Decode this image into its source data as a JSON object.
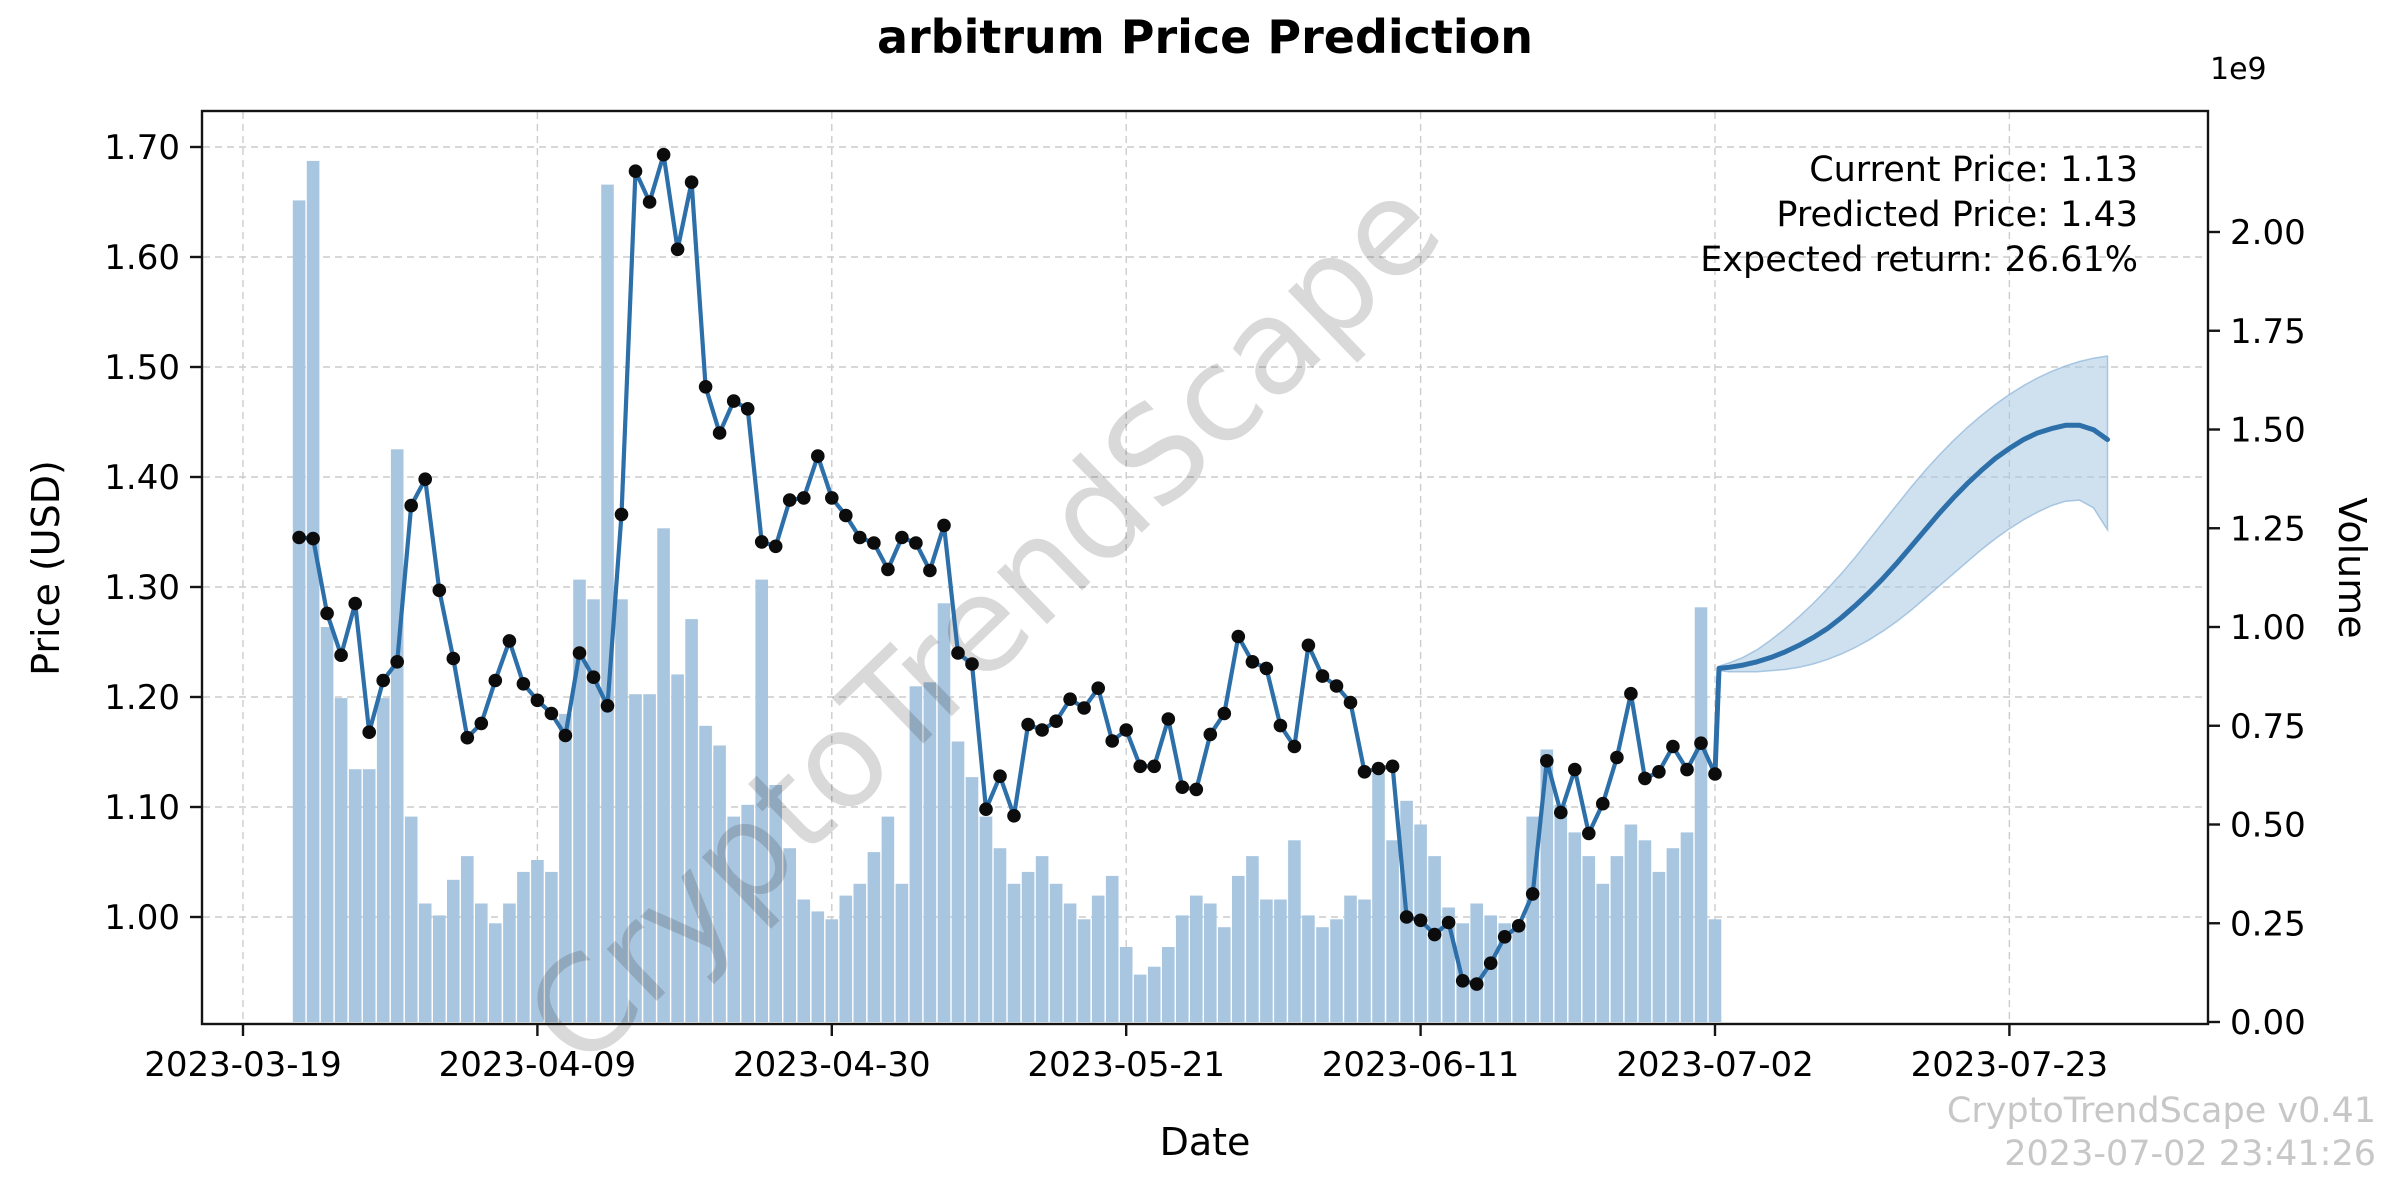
{
  "figure": {
    "title": "arbitrum Price Prediction",
    "xlabel": "Date",
    "ylabel_left": "Price (USD)",
    "ylabel_right": "Volume",
    "right_axis_multiplier": "1e9",
    "watermark": "CryptoTrendScape",
    "footer_line1": "CryptoTrendScape v0.41",
    "footer_line2": "2023-07-02 23:41:26",
    "annotation": {
      "current_price_label": "Current Price: 1.13",
      "predicted_price_label": "Predicted Price: 1.43",
      "expected_return_label": "Expected return: 26.61%"
    },
    "colors": {
      "price_line": "#2d6fa9",
      "prediction_line": "#2d6fa9",
      "marker": "#0c0c0c",
      "volume_bar": "#a9c6e0",
      "band_fill": "#a8c8e2",
      "band_edge": "#8cb4d8",
      "grid": "#cccccc",
      "spine": "#141414",
      "watermark": "rgba(0,0,0,0.15)",
      "footer_text": "#c7c7c7"
    }
  },
  "chart_data": {
    "type": "line",
    "title": "arbitrum Price Prediction",
    "xlabel": "Date",
    "ylabel": "Price (USD)",
    "y2label": "Volume",
    "grid": true,
    "x_tick_labels": [
      "2023-03-19",
      "2023-04-09",
      "2023-04-30",
      "2023-05-21",
      "2023-06-11",
      "2023-07-02",
      "2023-07-23"
    ],
    "price_tick_labels": [
      "1.00",
      "1.10",
      "1.20",
      "1.30",
      "1.40",
      "1.50",
      "1.60",
      "1.70"
    ],
    "volume_tick_labels": [
      "0.00",
      "0.25",
      "0.50",
      "0.75",
      "1.00",
      "1.25",
      "1.50",
      "1.75",
      "2.00"
    ],
    "price_ylim": [
      0.9,
      1.733
    ],
    "volume_ylim_1e9": [
      0,
      2.3
    ],
    "current_price": 1.13,
    "predicted_price": 1.43,
    "expected_return_pct": 26.61,
    "history": {
      "start_date": "2023-03-23",
      "end_date": "2023-07-02",
      "prices": [
        1.345,
        1.344,
        1.276,
        1.238,
        1.285,
        1.168,
        1.215,
        1.232,
        1.374,
        1.398,
        1.297,
        1.235,
        1.163,
        1.176,
        1.215,
        1.251,
        1.212,
        1.197,
        1.185,
        1.165,
        1.24,
        1.218,
        1.192,
        1.366,
        1.678,
        1.65,
        1.693,
        1.607,
        1.668,
        1.482,
        1.44,
        1.469,
        1.462,
        1.341,
        1.337,
        1.379,
        1.381,
        1.419,
        1.381,
        1.365,
        1.345,
        1.34,
        1.316,
        1.345,
        1.34,
        1.315,
        1.356,
        1.24,
        1.23,
        1.098,
        1.128,
        1.092,
        1.175,
        1.17,
        1.178,
        1.198,
        1.19,
        1.208,
        1.16,
        1.17,
        1.137,
        1.137,
        1.18,
        1.118,
        1.116,
        1.166,
        1.185,
        1.255,
        1.232,
        1.226,
        1.174,
        1.155,
        1.247,
        1.219,
        1.21,
        1.195,
        1.132,
        1.135,
        1.137,
        1.0,
        0.997,
        0.984,
        0.995,
        0.942,
        0.939,
        0.958,
        0.982,
        0.992,
        1.021,
        1.142,
        1.095,
        1.134,
        1.076,
        1.103,
        1.145,
        1.203,
        1.126,
        1.132,
        1.155,
        1.134,
        1.158,
        1.13
      ],
      "volumes_1e9": [
        2.08,
        2.18,
        1.0,
        0.82,
        0.64,
        0.64,
        0.82,
        1.45,
        0.52,
        0.3,
        0.27,
        0.36,
        0.42,
        0.3,
        0.25,
        0.3,
        0.38,
        0.41,
        0.38,
        0.78,
        1.12,
        1.07,
        2.12,
        1.07,
        0.83,
        0.83,
        1.25,
        0.88,
        1.02,
        0.75,
        0.7,
        0.52,
        0.55,
        1.12,
        0.6,
        0.44,
        0.31,
        0.28,
        0.26,
        0.32,
        0.35,
        0.43,
        0.52,
        0.35,
        0.85,
        0.86,
        1.06,
        0.71,
        0.62,
        0.52,
        0.44,
        0.35,
        0.38,
        0.42,
        0.35,
        0.3,
        0.26,
        0.32,
        0.37,
        0.19,
        0.12,
        0.14,
        0.19,
        0.27,
        0.32,
        0.3,
        0.24,
        0.37,
        0.42,
        0.31,
        0.31,
        0.46,
        0.27,
        0.24,
        0.26,
        0.32,
        0.31,
        0.63,
        0.46,
        0.56,
        0.5,
        0.42,
        0.29,
        0.25,
        0.3,
        0.27,
        0.25,
        0.25,
        0.52,
        0.69,
        0.55,
        0.48,
        0.42,
        0.35,
        0.42,
        0.5,
        0.46,
        0.38,
        0.44,
        0.48,
        1.05,
        0.26
      ]
    },
    "prediction": {
      "start_date": "2023-07-02",
      "end_date": "2023-07-30",
      "values": [
        1.226,
        1.227,
        1.229,
        1.232,
        1.236,
        1.241,
        1.247,
        1.254,
        1.262,
        1.272,
        1.283,
        1.295,
        1.308,
        1.322,
        1.337,
        1.352,
        1.367,
        1.381,
        1.394,
        1.406,
        1.417,
        1.426,
        1.434,
        1.44,
        1.444,
        1.447,
        1.447,
        1.443,
        1.434
      ],
      "upper_band": [
        1.228,
        1.231,
        1.236,
        1.243,
        1.252,
        1.262,
        1.273,
        1.285,
        1.298,
        1.312,
        1.327,
        1.343,
        1.359,
        1.375,
        1.391,
        1.406,
        1.42,
        1.433,
        1.445,
        1.456,
        1.466,
        1.475,
        1.483,
        1.49,
        1.496,
        1.501,
        1.505,
        1.508,
        1.51
      ],
      "lower_band": [
        1.224,
        1.223,
        1.223,
        1.223,
        1.224,
        1.225,
        1.227,
        1.23,
        1.234,
        1.239,
        1.245,
        1.252,
        1.26,
        1.269,
        1.279,
        1.29,
        1.301,
        1.312,
        1.323,
        1.334,
        1.344,
        1.353,
        1.361,
        1.368,
        1.374,
        1.378,
        1.379,
        1.372,
        1.352
      ]
    }
  }
}
